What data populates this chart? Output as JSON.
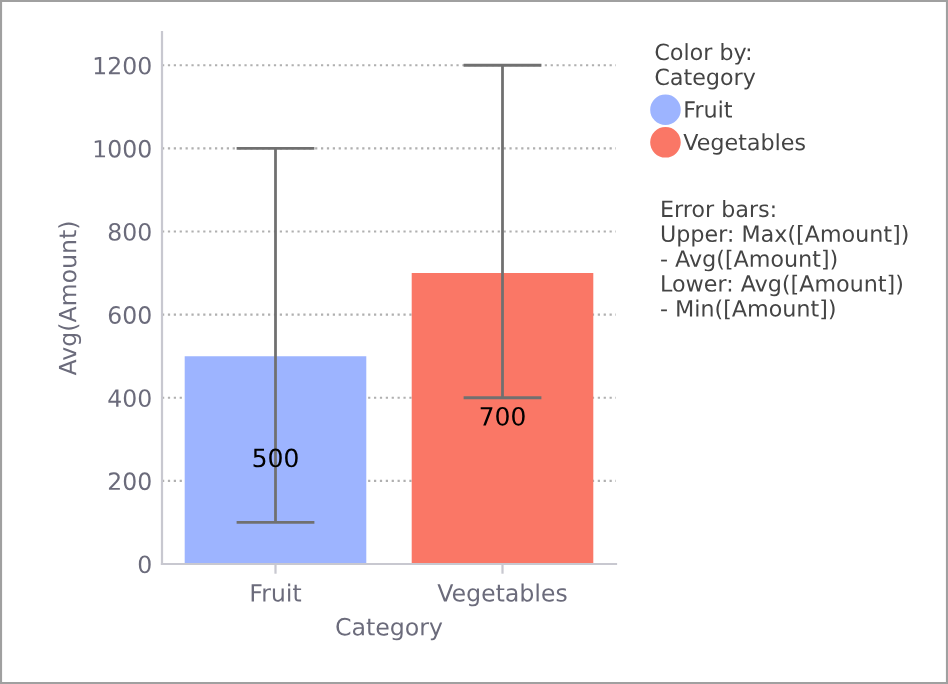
{
  "chart_data": {
    "type": "bar",
    "xlabel": "Category",
    "ylabel": "Avg(Amount)",
    "legend_title": "Color by:\nCategory",
    "categories": [
      "Fruit",
      "Vegetables"
    ],
    "series": [
      {
        "name": "Fruit",
        "color": "#9db4ff",
        "values": [
          500,
          null
        ],
        "errors": [
          [
            100,
            1000
          ],
          null
        ]
      },
      {
        "name": "Vegetables",
        "color": "#fa7766",
        "values": [
          null,
          700
        ],
        "errors": [
          null,
          [
            400,
            1200
          ]
        ]
      }
    ],
    "data_labels": true,
    "ylim": [
      0,
      1280
    ],
    "yticks": [
      0,
      200,
      400,
      600,
      800,
      1000,
      1200
    ],
    "grid": "y",
    "legend": "right",
    "annotations": [
      "Error bars:\nUpper: Max([Amount])\n- Avg([Amount])\nLower: Avg([Amount])\n- Min([Amount])"
    ]
  }
}
